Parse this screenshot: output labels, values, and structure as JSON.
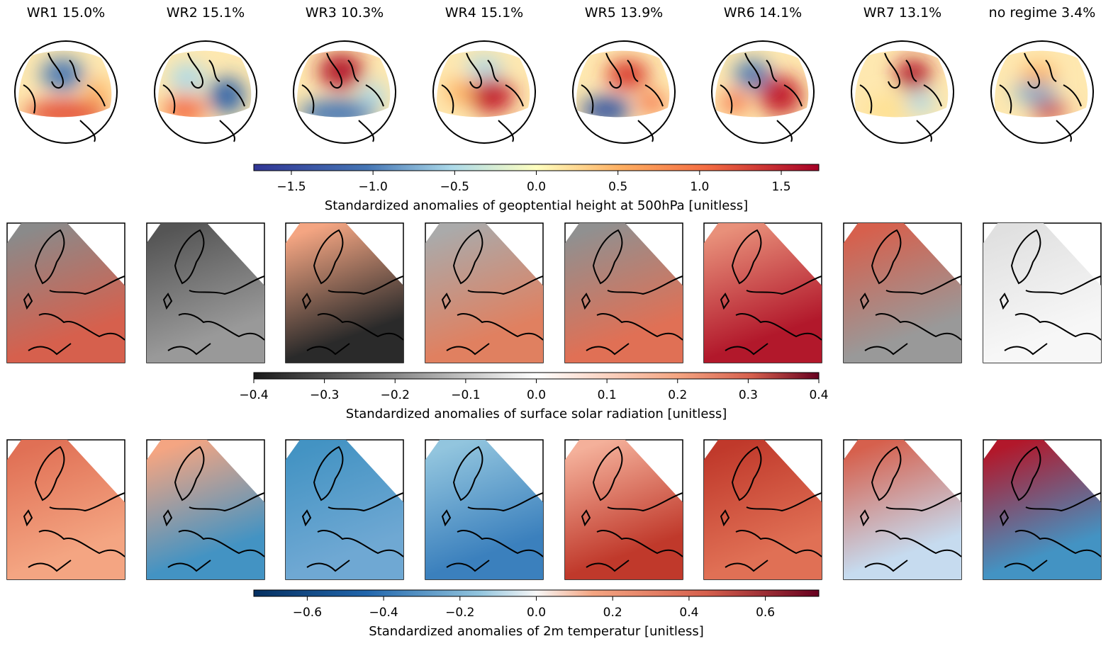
{
  "panels": [
    {
      "title": "WR1 15.0%"
    },
    {
      "title": "WR2 15.1%"
    },
    {
      "title": "WR3 10.3%"
    },
    {
      "title": "WR4 15.1%"
    },
    {
      "title": "WR5 13.9%"
    },
    {
      "title": "WR6 14.1%"
    },
    {
      "title": "WR7 13.1%"
    },
    {
      "title": "no regime 3.4%"
    }
  ],
  "colorbars": [
    {
      "label": "Standardized anomalies of geoptential height at 500hPa [unitless]",
      "lim": [
        -1.73,
        1.73
      ],
      "ticks": [
        {
          "value": -1.5,
          "label": "−1.5"
        },
        {
          "value": -1.0,
          "label": "−1.0"
        },
        {
          "value": -0.5,
          "label": "−0.5"
        },
        {
          "value": 0,
          "label": "0.0"
        },
        0.5,
        {
          "value": 1,
          "label": "1.0"
        },
        1.5
      ]
    },
    {
      "label": "Standardized anomalies of surface solar radiation [unitless]",
      "lim": [
        -0.4,
        0.4
      ],
      "ticks": [
        {
          "value": -0.4,
          "label": "−0.4"
        },
        {
          "value": -0.3,
          "label": "−0.3"
        },
        {
          "value": -0.2,
          "label": "−0.2"
        },
        {
          "value": -0.1,
          "label": "−0.1"
        },
        {
          "value": 0,
          "label": "0.0"
        },
        0.1,
        0.2,
        0.3,
        0.4
      ]
    },
    {
      "label": "Standardized anomalies of 2m temperatur [unitless]",
      "lim": [
        -0.74,
        0.74
      ],
      "ticks": [
        {
          "value": -0.6,
          "label": "−0.6"
        },
        {
          "value": -0.4,
          "label": "−0.4"
        },
        {
          "value": -0.2,
          "label": "−0.2"
        },
        {
          "value": 0,
          "label": "0.0"
        },
        0.2,
        0.4,
        0.6
      ]
    }
  ]
}
